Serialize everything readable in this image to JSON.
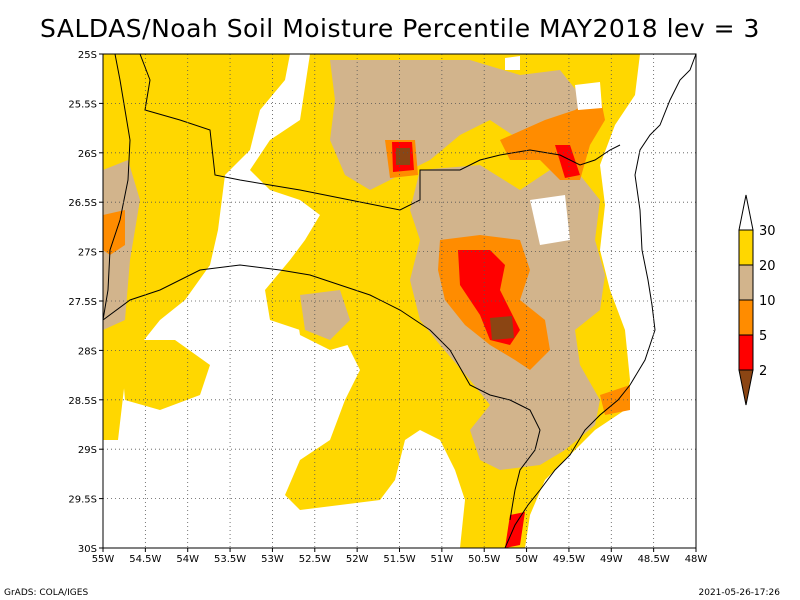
{
  "title": "SALDAS/Noah Soil Moisture Percentile MAY2018 lev = 3",
  "footer": {
    "left": "GrADS: COLA/IGES",
    "right": "2021-05-26-17:26"
  },
  "map": {
    "lon_range": [
      -55,
      -48
    ],
    "lat_range": [
      -30,
      -25
    ],
    "lon_ticks": [
      {
        "value": -55,
        "label": "55W"
      },
      {
        "value": -54.5,
        "label": "54.5W"
      },
      {
        "value": -54,
        "label": "54W"
      },
      {
        "value": -53.5,
        "label": "53.5W"
      },
      {
        "value": -53,
        "label": "53W"
      },
      {
        "value": -52.5,
        "label": "52.5W"
      },
      {
        "value": -52,
        "label": "52W"
      },
      {
        "value": -51.5,
        "label": "51.5W"
      },
      {
        "value": -51,
        "label": "51W"
      },
      {
        "value": -50.5,
        "label": "50.5W"
      },
      {
        "value": -50,
        "label": "50W"
      },
      {
        "value": -49.5,
        "label": "49.5W"
      },
      {
        "value": -49,
        "label": "49W"
      },
      {
        "value": -48.5,
        "label": "48.5W"
      },
      {
        "value": -48,
        "label": "48W"
      }
    ],
    "lat_ticks": [
      {
        "value": -25,
        "label": "25S"
      },
      {
        "value": -25.5,
        "label": "25.5S"
      },
      {
        "value": -26,
        "label": "26S"
      },
      {
        "value": -26.5,
        "label": "26.5S"
      },
      {
        "value": -27,
        "label": "27S"
      },
      {
        "value": -27.5,
        "label": "27.5S"
      },
      {
        "value": -28,
        "label": "28S"
      },
      {
        "value": -28.5,
        "label": "28.5S"
      },
      {
        "value": -29,
        "label": "29S"
      },
      {
        "value": -29.5,
        "label": "29.5S"
      },
      {
        "value": -30,
        "label": "30S"
      }
    ],
    "grid": "dotted"
  },
  "legend": {
    "colors": [
      "#8b4513",
      "#ff0000",
      "#ff8c00",
      "#d2b48c",
      "#ffd700",
      "#ffffff"
    ],
    "labels": [
      "2",
      "5",
      "10",
      "20",
      "30"
    ]
  }
}
